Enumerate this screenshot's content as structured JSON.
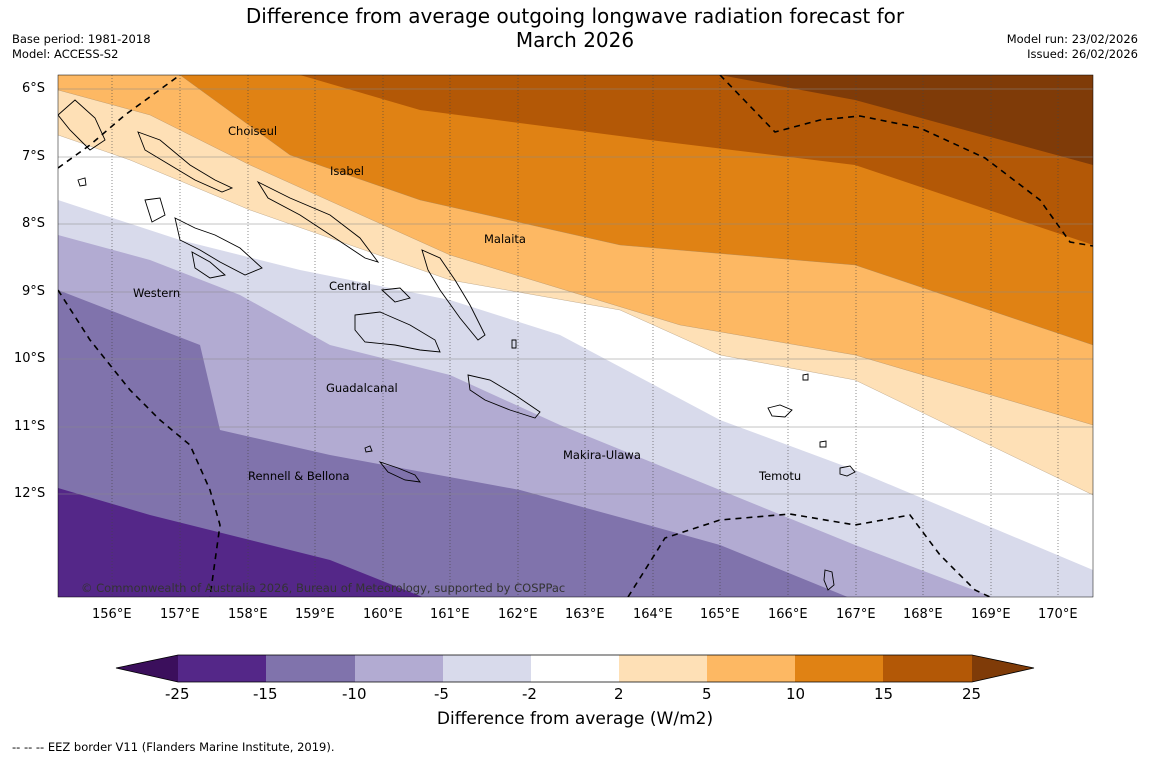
{
  "header": {
    "title_line1": "Difference from average outgoing longwave radiation forecast for",
    "title_line2": "March 2026",
    "base_period": "Base period: 1981-2018",
    "model": "Model: ACCESS-S2",
    "model_run": "Model run: 23/02/2026",
    "issued": "Issued: 26/02/2026"
  },
  "map": {
    "copyright": "© Commonwealth of Australia 2026, Bureau of Meteorology, supported by COSPPac",
    "lat_labels": [
      "6°S",
      "7°S",
      "8°S",
      "9°S",
      "10°S",
      "11°S",
      "12°S"
    ],
    "lon_labels": [
      "156°E",
      "157°E",
      "158°E",
      "159°E",
      "160°E",
      "161°E",
      "162°E",
      "163°E",
      "164°E",
      "165°E",
      "166°E",
      "167°E",
      "168°E",
      "169°E",
      "170°E"
    ],
    "places": [
      "Choiseul",
      "Isabel",
      "Malaita",
      "Western",
      "Central",
      "Guadalcanal",
      "Makira-Ulawa",
      "Rennell & Bellona",
      "Temotu"
    ]
  },
  "colorbar": {
    "ticks": [
      "-25",
      "-15",
      "-10",
      "-5",
      "-2",
      "2",
      "5",
      "10",
      "15",
      "25"
    ],
    "label": "Difference from average (W/m2)",
    "colors": {
      "below_-25": "#3b0f5c",
      "-25_-15": "#542788",
      "-15_-10": "#8073ac",
      "-10_-5": "#b2abd2",
      "-5_-2": "#d8daeb",
      "-2_2": "#ffffff",
      "2_5": "#fee0b6",
      "5_10": "#fdb863",
      "10_15": "#e08214",
      "15_25": "#b35806",
      "above_25": "#7f3b08"
    }
  },
  "legend": {
    "eez": "--  --  -- EEZ border V11 (Flanders Marine Institute, 2019)."
  }
}
